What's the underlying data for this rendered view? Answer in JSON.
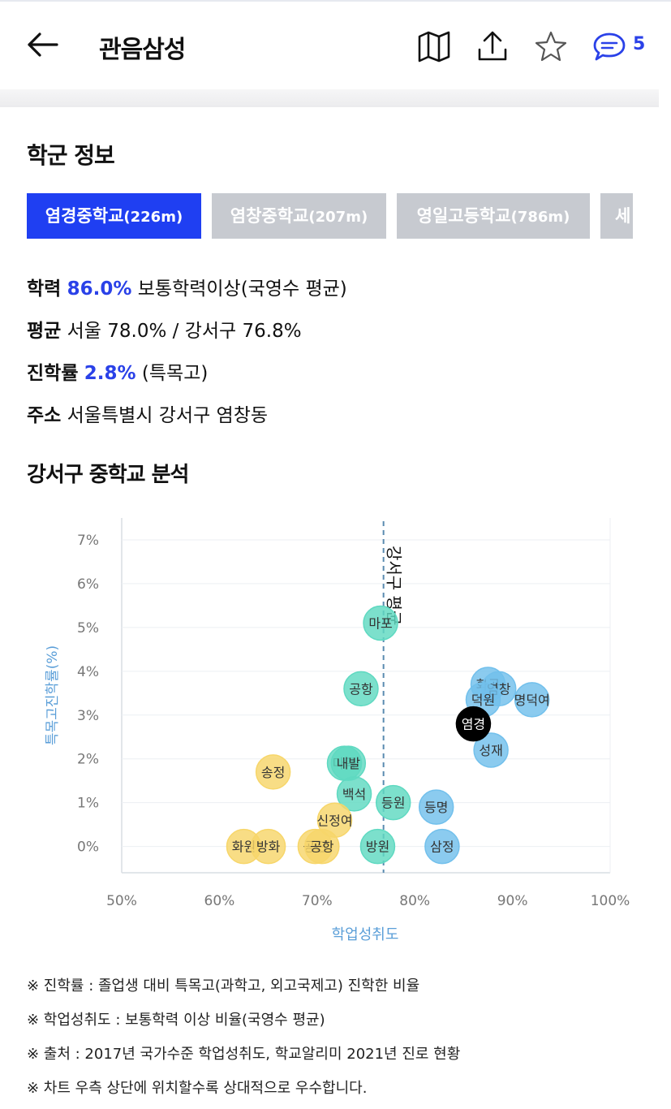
{
  "header": {
    "title": "관음삼성",
    "comment_count": "5"
  },
  "school_section": {
    "title": "학군 정보",
    "tabs": [
      {
        "name": "염경중학교",
        "dist": "(226m)",
        "active": true
      },
      {
        "name": "염창중학교",
        "dist": "(207m)",
        "active": false
      },
      {
        "name": "영일고등학교",
        "dist": "(786m)",
        "active": false
      },
      {
        "name": "세",
        "dist": "",
        "active": false
      }
    ],
    "rows": {
      "academic_label": "학력",
      "academic_value": "86.0%",
      "academic_desc": "보통학력이상(국영수 평균)",
      "avg_label": "평균",
      "avg_value": "서울 78.0% / 강서구 76.8%",
      "rate_label": "진학률",
      "rate_value": "2.8%",
      "rate_desc": "(특목고)",
      "address_label": "주소",
      "address_value": "서울특별시 강서구 염창동"
    }
  },
  "chart_section_title": "강서구 중학교 분석",
  "chart_data": {
    "type": "scatter",
    "xlabel": "학업성취도",
    "ylabel": "특목고진학률(%)",
    "xlim": [
      50,
      100
    ],
    "ylim": [
      -0.6,
      7.5
    ],
    "x_ticks": [
      "50%",
      "60%",
      "70%",
      "80%",
      "90%",
      "100%"
    ],
    "y_ticks": [
      "0%",
      "1%",
      "2%",
      "3%",
      "4%",
      "5%",
      "6%",
      "7%"
    ],
    "reference_line": {
      "x": 76.8,
      "label": "강서구 평균"
    },
    "colors": {
      "low": "#f7d66a",
      "mid": "#5fd9c1",
      "high": "#72c0ec",
      "current": "#000000"
    },
    "points": [
      {
        "label": "마포",
        "x": 76.5,
        "y": 5.1,
        "group": "mid"
      },
      {
        "label": "공항",
        "x": 74.5,
        "y": 3.6,
        "group": "mid"
      },
      {
        "label": "화곡",
        "x": 87.5,
        "y": 3.7,
        "group": "high"
      },
      {
        "label": "염창",
        "x": 88.6,
        "y": 3.6,
        "group": "high"
      },
      {
        "label": "덕원",
        "x": 87.0,
        "y": 3.35,
        "group": "high"
      },
      {
        "label": "명덕여",
        "x": 92.0,
        "y": 3.35,
        "group": "high"
      },
      {
        "label": "성재",
        "x": 87.8,
        "y": 2.2,
        "group": "high"
      },
      {
        "label": "마곡",
        "x": 72.8,
        "y": 1.9,
        "group": "mid"
      },
      {
        "label": "내발",
        "x": 73.2,
        "y": 1.9,
        "group": "mid"
      },
      {
        "label": "송정",
        "x": 65.5,
        "y": 1.7,
        "group": "low"
      },
      {
        "label": "백석",
        "x": 73.8,
        "y": 1.2,
        "group": "mid"
      },
      {
        "label": "등원",
        "x": 77.8,
        "y": 1.0,
        "group": "mid"
      },
      {
        "label": "등명",
        "x": 82.2,
        "y": 0.9,
        "group": "high"
      },
      {
        "label": "신정여",
        "x": 71.8,
        "y": 0.6,
        "group": "low"
      },
      {
        "label": "화원",
        "x": 62.5,
        "y": 0.0,
        "group": "low"
      },
      {
        "label": "방화",
        "x": 65.0,
        "y": 0.0,
        "group": "low"
      },
      {
        "label": "공진",
        "x": 69.8,
        "y": 0.0,
        "group": "low"
      },
      {
        "label": "공항",
        "x": 70.5,
        "y": 0.0,
        "group": "low"
      },
      {
        "label": "방원",
        "x": 76.2,
        "y": 0.0,
        "group": "mid"
      },
      {
        "label": "삼정",
        "x": 82.8,
        "y": 0.0,
        "group": "high"
      },
      {
        "label": "염경",
        "x": 86.0,
        "y": 2.8,
        "group": "current"
      }
    ]
  },
  "notes": [
    "※ 진학률 : 졸업생 대비 특목고(과학고, 외고국제고) 진학한 비율",
    "※ 학업성취도 : 보통학력 이상 비율(국영수 평균)",
    "※ 출처 : 2017년 국가수준 학업성취도, 학교알리미 2021년 진로 현황",
    "※ 차트 우측 상단에 위치할수록 상대적으로 우수합니다."
  ]
}
